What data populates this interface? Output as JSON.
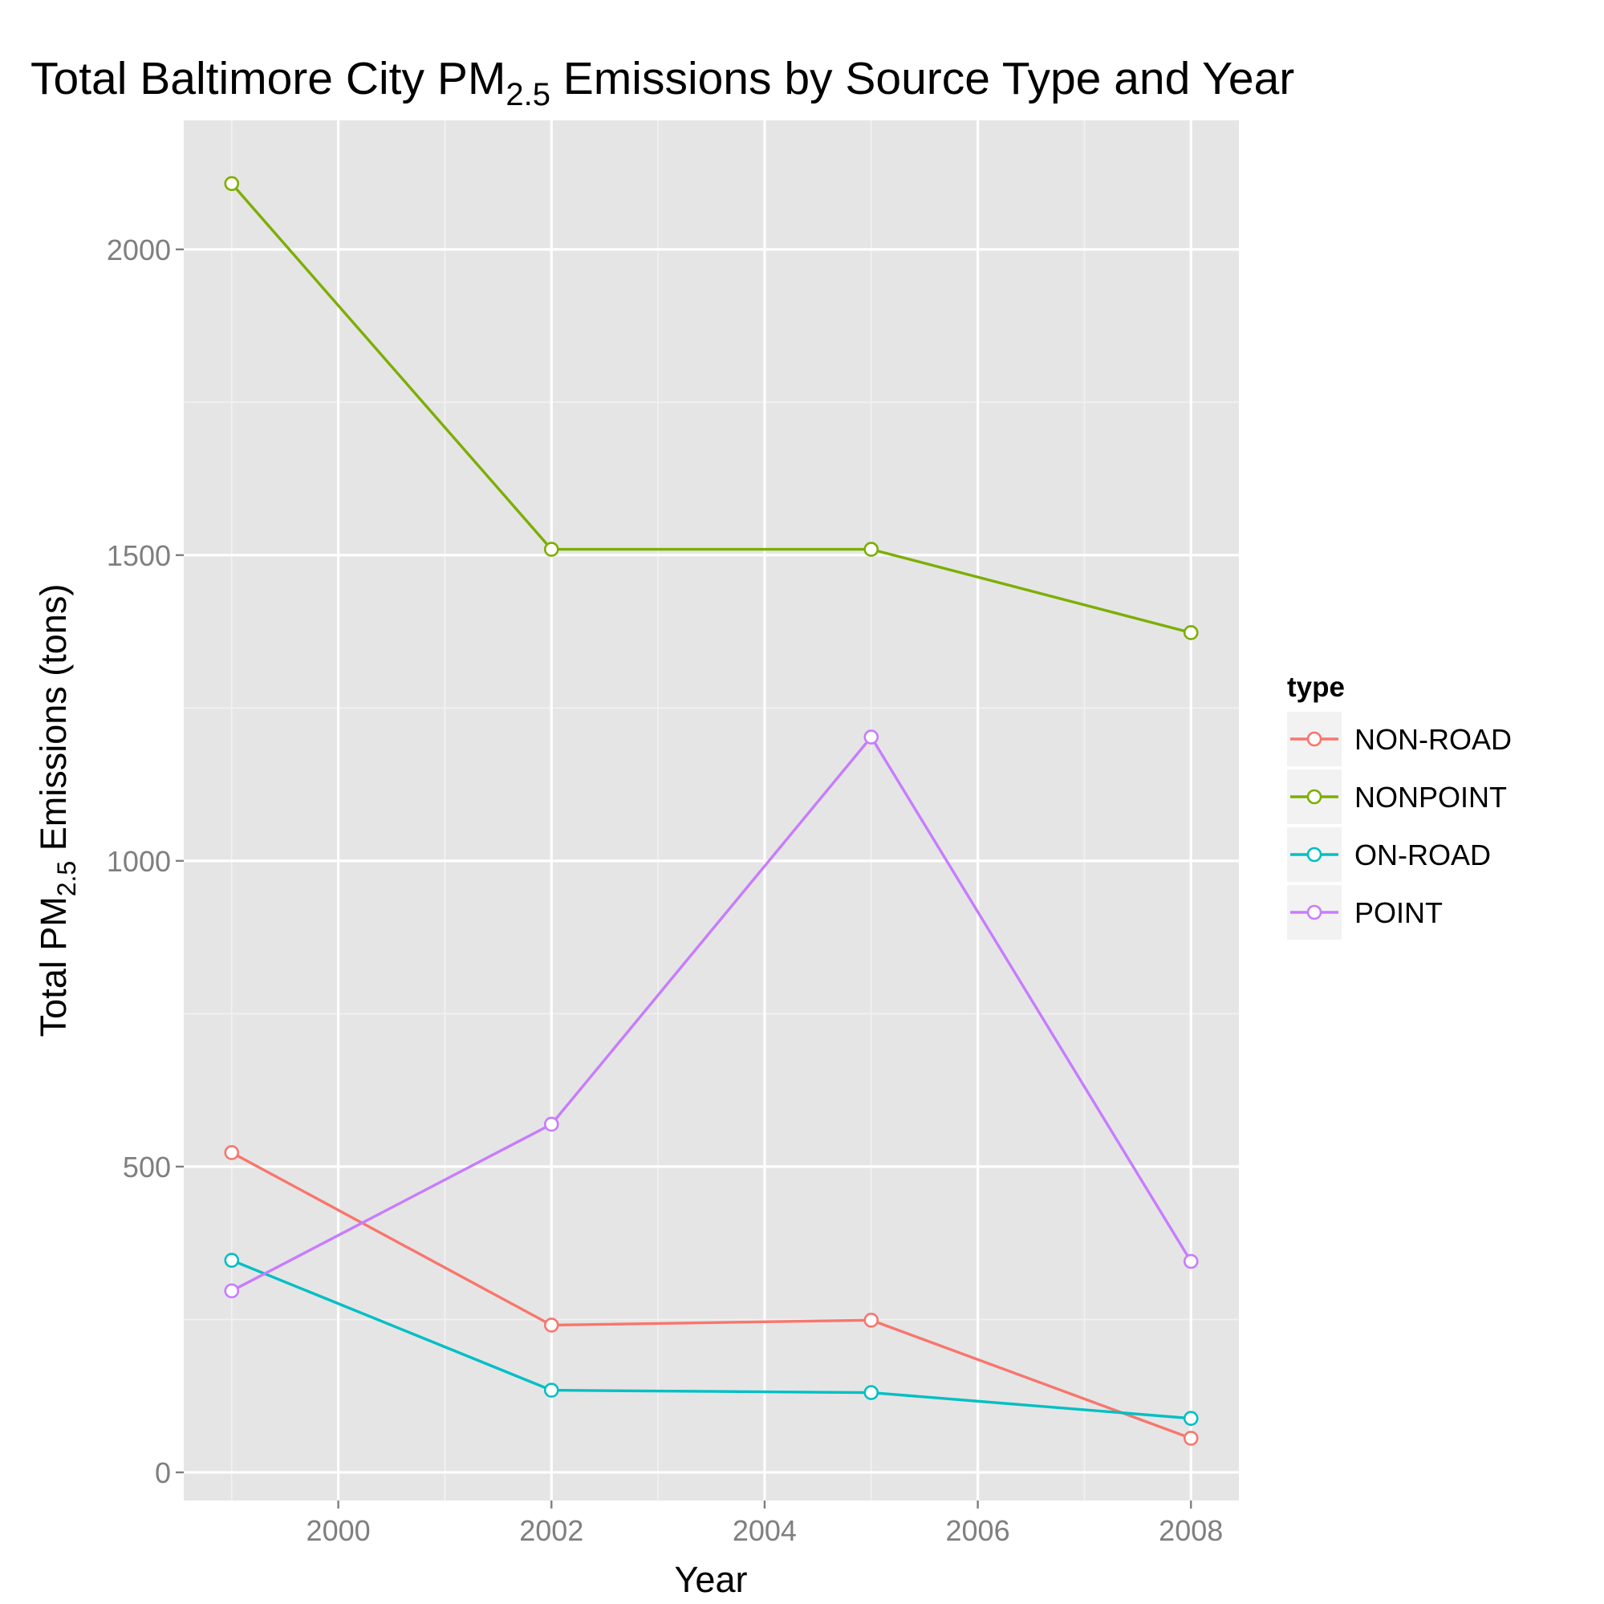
{
  "chart_data": {
    "type": "line",
    "title": "Total Baltimore City PM",
    "title_sub": "2.5",
    "title_suffix": " Emissions by Source Type and Year",
    "xlabel": "Year",
    "ylabel": "Total PM",
    "ylabel_sub": "2.5",
    "ylabel_suffix": " Emissions (tons)",
    "x": [
      1999,
      2002,
      2005,
      2008
    ],
    "xlim": [
      1998.55,
      2008.45
    ],
    "ylim": [
      -46,
      2211
    ],
    "x_ticks": [
      2000,
      2002,
      2004,
      2006,
      2008
    ],
    "y_ticks": [
      0,
      500,
      1000,
      1500,
      2000
    ],
    "grid": true,
    "legend_title": "type",
    "legend_position": "right",
    "series": [
      {
        "name": "NON-ROAD",
        "color": "#F8766D",
        "values": [
          522.9,
          240.8,
          248.9,
          55.8
        ]
      },
      {
        "name": "NONPOINT",
        "color": "#7CAE00",
        "values": [
          2107.6,
          1509.5,
          1509.5,
          1373.2
        ]
      },
      {
        "name": "ON-ROAD",
        "color": "#00BFC4",
        "values": [
          346.8,
          134.3,
          130.4,
          88.3
        ]
      },
      {
        "name": "POINT",
        "color": "#C77CFF",
        "values": [
          296.8,
          569.3,
          1202.5,
          345.0
        ]
      }
    ]
  }
}
